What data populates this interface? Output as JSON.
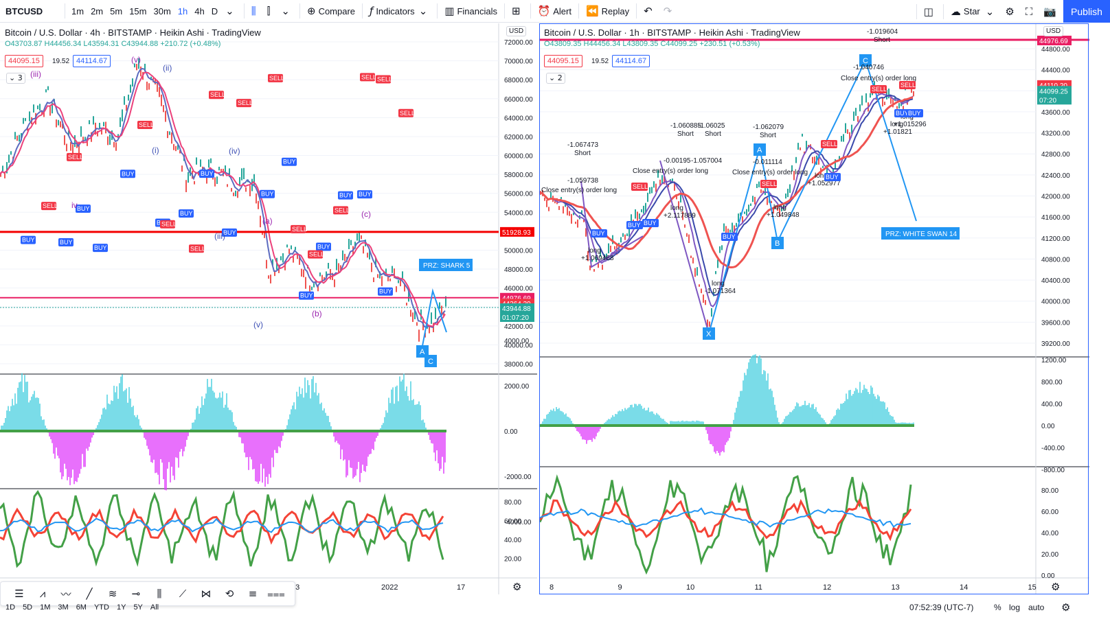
{
  "toolbar": {
    "symbol": "BTCUSD",
    "intervals": [
      "1m",
      "5m",
      "15m",
      "30m",
      "1h",
      "4h",
      "D"
    ],
    "alt_interval": "2m",
    "active_interval": "1h",
    "compare_label": "Compare",
    "indicators_label": "Indicators",
    "financials_label": "Financials",
    "alert_label": "Alert",
    "replay_label": "Replay",
    "star_label": "Star",
    "publish_label": "Publish"
  },
  "left_chart": {
    "legend": "Bitcoin / U.S. Dollar · 4h · BITSTAMP · Heikin Ashi · TradingView",
    "ohlc": {
      "o": "O43703.87",
      "h": "H44456.34",
      "l": "L43594.31",
      "c": "C43944.88",
      "chg": "+210.72 (+0.48%)"
    },
    "bid": "44095.15",
    "spread": "19.52",
    "ask": "44114.67",
    "collapse_count": "3",
    "currency": "USD",
    "price_axis": [
      "72000.00",
      "70000.00",
      "68000.00",
      "66000.00",
      "64000.00",
      "62000.00",
      "60000.00",
      "58000.00",
      "56000.00",
      "54000.00",
      "52000.00",
      "50000.00",
      "48000.00",
      "46000.00",
      "44000.00",
      "42000.00",
      "40000.00",
      "38000.00"
    ],
    "price_tags": {
      "red_line": "51928.93",
      "pink_line": "44976.69",
      "current": "44364.39",
      "close": "43944.88",
      "countdown": "01:07:20"
    },
    "wave_labels": [
      "(iii)",
      "(v)",
      "(ii)",
      "(i)",
      "(iv)",
      "iv",
      "(iii)",
      "(a)",
      "(c)",
      "(b)",
      "(v)"
    ],
    "pattern_label": "PRZ: SHARK 5",
    "pattern_points": [
      "A",
      "C"
    ],
    "osc_axis": [
      "4000.00",
      "2000.00",
      "0.00",
      "-2000.00",
      "-4000.00"
    ],
    "rsi_axis": [
      "80.00",
      "60.00",
      "40.00",
      "20.00"
    ],
    "time_axis": [
      "13",
      "2022",
      "17"
    ]
  },
  "right_chart": {
    "legend": "Bitcoin / U.S. Dollar · 1h · BITSTAMP · Heikin Ashi · TradingView",
    "ohlc": {
      "o": "O43809.35",
      "h": "H44456.34",
      "l": "L43809.35",
      "c": "C44099.25",
      "chg": "+230.51 (+0.53%)"
    },
    "bid": "44095.15",
    "spread": "19.52",
    "ask": "44114.67",
    "collapse_count": "2",
    "currency": "USD",
    "price_axis": [
      "44800.00",
      "44400.00",
      "44000.00",
      "43600.00",
      "43200.00",
      "42800.00",
      "42400.00",
      "42000.00",
      "41600.00",
      "41200.00",
      "40800.00",
      "40400.00",
      "40000.00",
      "39600.00",
      "39200.00"
    ],
    "price_tags": {
      "pink_line": "44976.69",
      "current": "44110.20",
      "close": "44099.25",
      "countdown": "07:20"
    },
    "trade_annotations": [
      {
        "value": "-1.067473",
        "side": "Short"
      },
      {
        "value": "-1.059738",
        "side": ""
      },
      {
        "value": "-1.060885",
        "side": "Short"
      },
      {
        "value": "-1.06025",
        "side": "Short"
      },
      {
        "value": "-0.00195",
        "side": ""
      },
      {
        "value": "-1.057004",
        "side": ""
      },
      {
        "value": "-1.062079",
        "side": "Short"
      },
      {
        "value": "-0.011114",
        "side": ""
      },
      {
        "value": "-1.019604",
        "side": "Short"
      },
      {
        "value": "-1.040746",
        "side": ""
      },
      {
        "value": "+1.069468",
        "side": "long"
      },
      {
        "value": "+2.117889",
        "side": "long"
      },
      {
        "value": "-1.071364",
        "side": "long"
      },
      {
        "value": "+1.049848",
        "side": "long"
      },
      {
        "value": "+1.052977",
        "side": "long"
      },
      {
        "value": "+1.01821",
        "side": "long"
      },
      {
        "value": "+1.015296",
        "side": "long"
      }
    ],
    "close_entry_labels": [
      "Close entry(s) order long",
      "Close entry(s) order long",
      "Close entry(s) order long",
      "Close entry(s) order long"
    ],
    "pattern_label": "PRZ: WHITE SWAN 14",
    "pattern_points": [
      "X",
      "A",
      "B",
      "C"
    ],
    "osc_axis": [
      "1200.00",
      "800.00",
      "400.00",
      "0.00",
      "-400.00",
      "-800.00"
    ],
    "rsi_axis": [
      "80.00",
      "60.00",
      "40.00",
      "20.00",
      "0.00"
    ],
    "time_axis": [
      "8",
      "9",
      "10",
      "11",
      "12",
      "13",
      "14",
      "15"
    ]
  },
  "signals": {
    "buy": "BUY",
    "sell": "SELL"
  },
  "bottom": {
    "ranges": [
      "1D",
      "5D",
      "1M",
      "3M",
      "6M",
      "YTD",
      "1Y",
      "5Y",
      "All"
    ],
    "clock": "07:52:39 (UTC-7)",
    "percent": "%",
    "log": "log",
    "auto": "auto"
  },
  "colors": {
    "accent": "#2962ff",
    "sell": "#f23645",
    "buy": "#2962ff",
    "hist_pos": "#4dd0e1",
    "hist_neg": "#e040fb",
    "rsi_green": "#43a047",
    "rsi_red": "#f44336",
    "rsi_blue": "#2196f3"
  }
}
